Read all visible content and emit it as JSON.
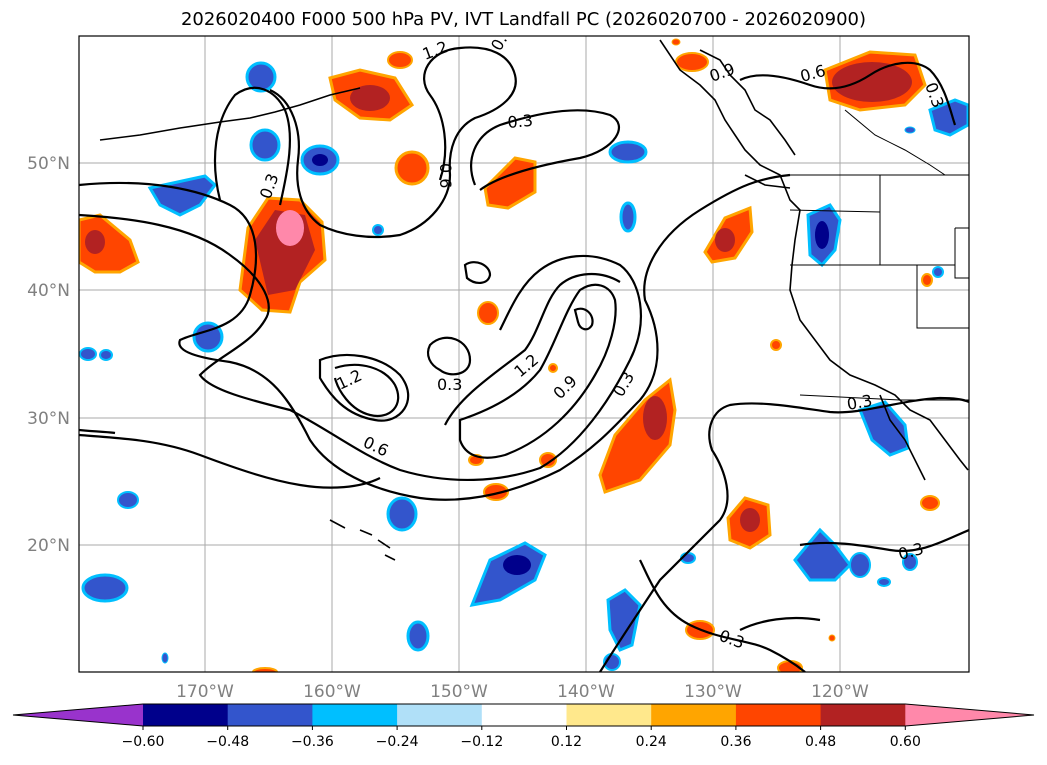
{
  "title": "2026020400 F000 500 hPa PV, IVT Landfall PC (2026020700 - 2026020900)",
  "map": {
    "lat_labels": [
      "50°N",
      "40°N",
      "30°N",
      "20°N"
    ],
    "lon_labels": [
      "170°W",
      "160°W",
      "150°W",
      "140°W",
      "130°W",
      "120°W"
    ],
    "contour_labels": [
      "1.2",
      "0.",
      "0.9",
      "0.6",
      "0.3",
      "0.3",
      "0.6",
      "0.3",
      "1.2",
      "0.3",
      "1.2",
      "0.9",
      "0.3",
      "0.6",
      "0.3",
      "0.3",
      "0.3"
    ]
  },
  "colorbar": {
    "ticks": [
      "−0.60",
      "−0.48",
      "−0.36",
      "−0.24",
      "−0.12",
      "0.12",
      "0.24",
      "0.36",
      "0.48",
      "0.60"
    ],
    "colors": [
      "#9933cc",
      "#00008b",
      "#3355cc",
      "#00bfff",
      "#b0e0f8",
      "#ffffff",
      "#ffe88c",
      "#ffa500",
      "#ff4500",
      "#b22222",
      "#ff88aa"
    ]
  }
}
